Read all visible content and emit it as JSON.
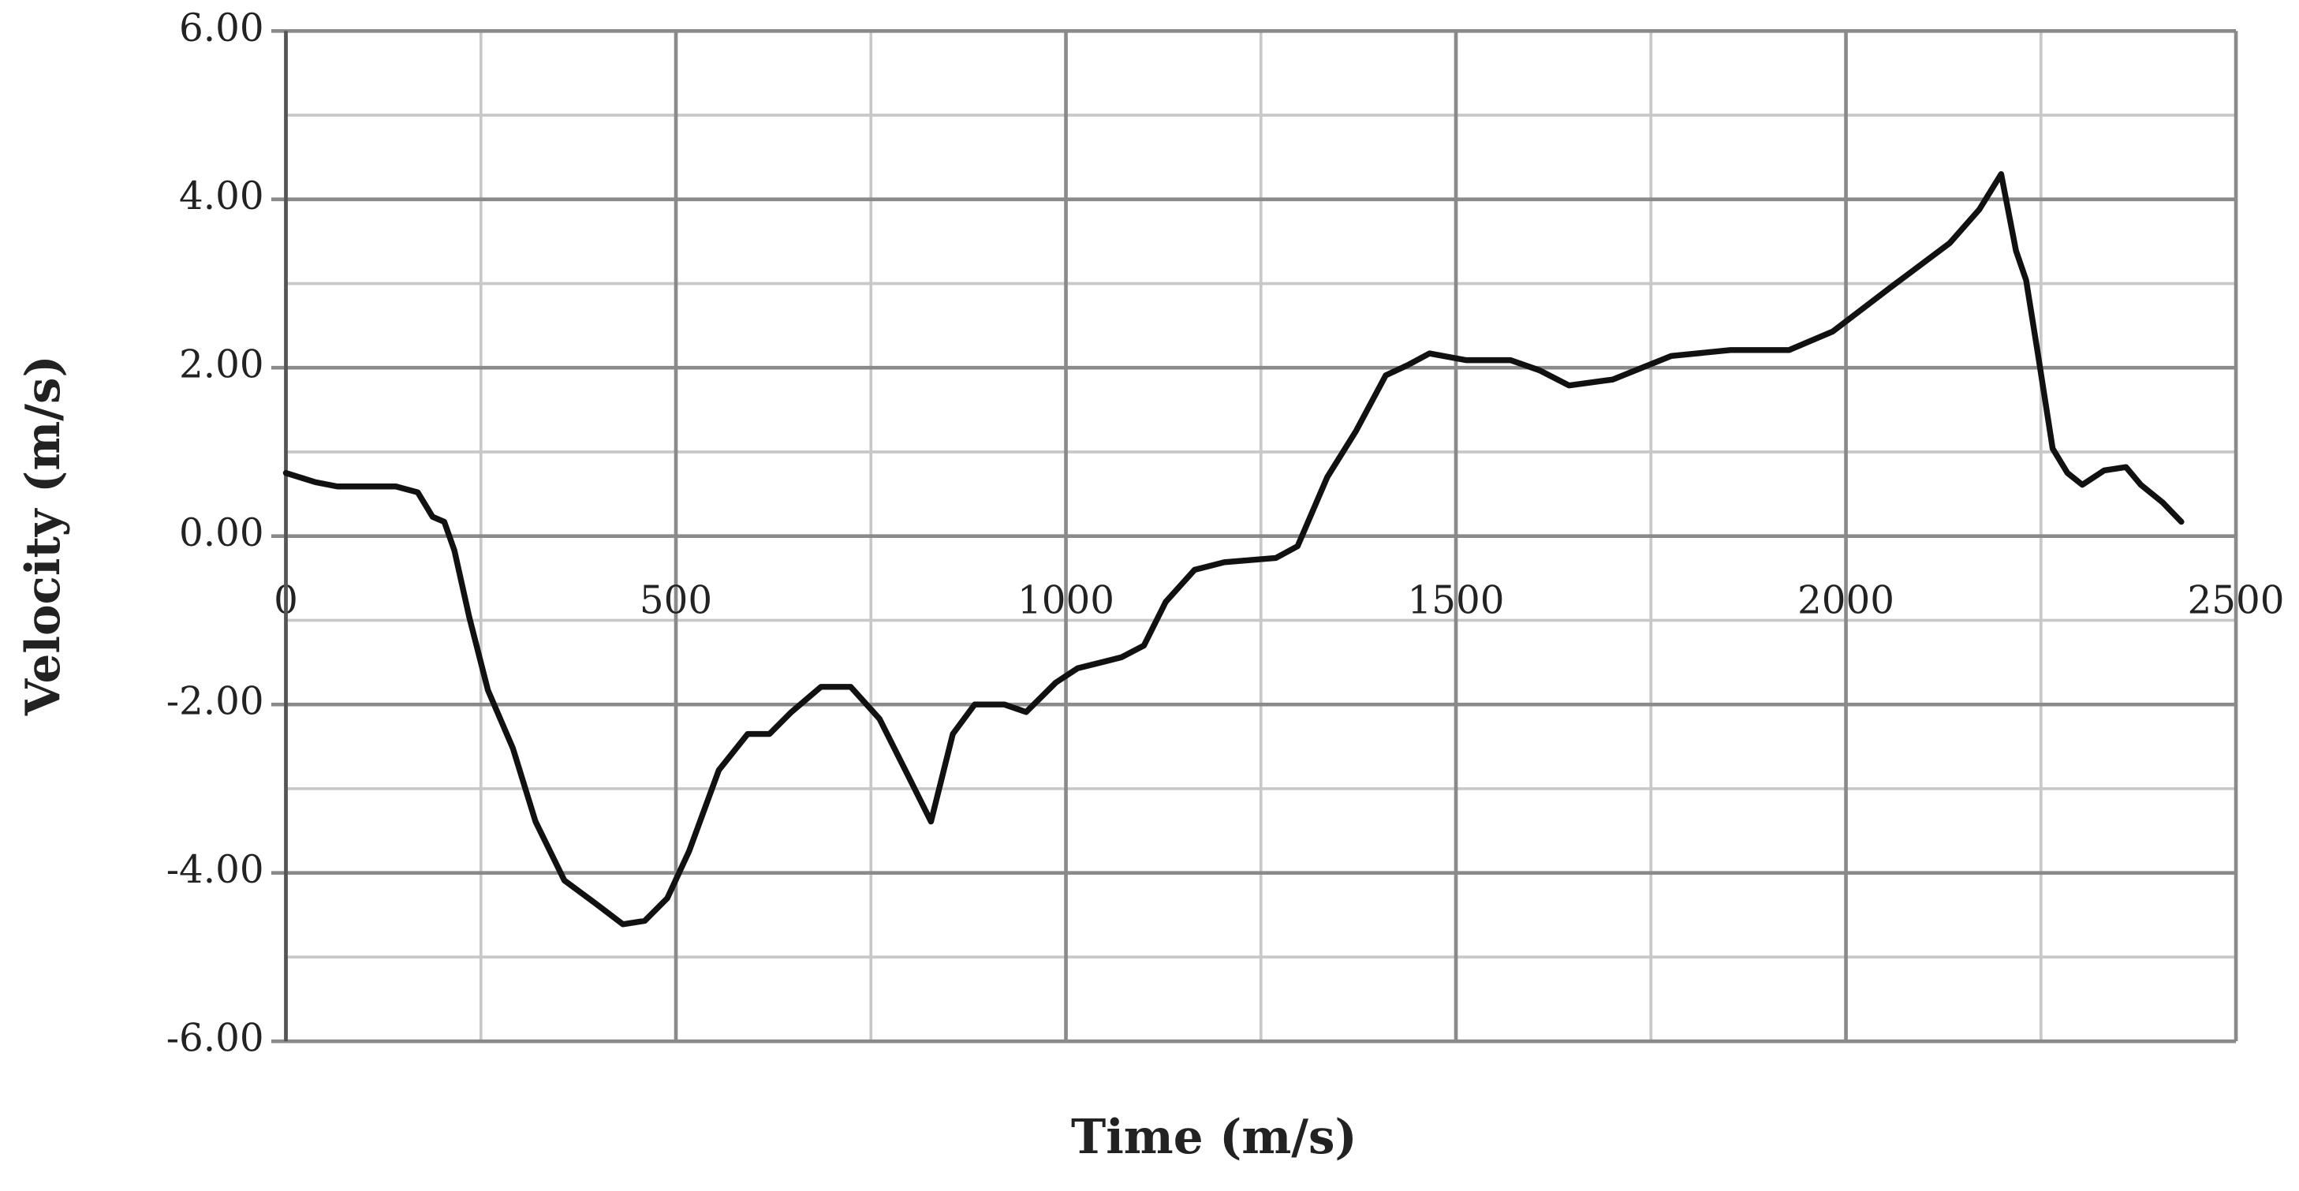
{
  "chart_data": {
    "type": "line",
    "x_label": "Time (m/s)",
    "y_label": "Velocity (m/s)",
    "x": [
      0,
      38,
      66,
      141,
      169,
      188,
      203,
      216,
      235,
      259,
      291,
      320,
      357,
      395,
      432,
      460,
      489,
      517,
      555,
      592,
      620,
      648,
      686,
      724,
      761,
      799,
      827,
      855,
      883,
      921,
      949,
      987,
      1015,
      1071,
      1100,
      1128,
      1165,
      1203,
      1269,
      1297,
      1335,
      1372,
      1410,
      1438,
      1466,
      1513,
      1570,
      1607,
      1645,
      1701,
      1776,
      1852,
      1927,
      1983,
      2058,
      2133,
      2171,
      2199,
      2218,
      2231,
      2246,
      2265,
      2284,
      2303,
      2331,
      2359,
      2378,
      2406,
      2430
    ],
    "series": [
      {
        "name": "Velocity",
        "color": "#111111",
        "values": [
          0.75,
          0.64,
          0.59,
          0.59,
          0.52,
          0.23,
          0.17,
          -0.17,
          -0.96,
          -1.83,
          -2.52,
          -3.39,
          -4.09,
          -4.35,
          -4.61,
          -4.57,
          -4.3,
          -3.74,
          -2.78,
          -2.35,
          -2.35,
          -2.09,
          -1.79,
          -1.79,
          -2.17,
          -2.87,
          -3.39,
          -2.35,
          -2.0,
          -2.0,
          -2.09,
          -1.74,
          -1.57,
          -1.44,
          -1.3,
          -0.78,
          -0.4,
          -0.31,
          -0.26,
          -0.12,
          0.7,
          1.25,
          1.91,
          2.03,
          2.17,
          2.09,
          2.09,
          1.97,
          1.79,
          1.86,
          2.14,
          2.21,
          2.21,
          2.43,
          2.96,
          3.48,
          3.88,
          4.3,
          3.39,
          3.04,
          2.17,
          1.04,
          0.75,
          0.61,
          0.78,
          0.82,
          0.61,
          0.4,
          0.17
        ]
      }
    ],
    "xlim": [
      0,
      2500
    ],
    "xticks": [
      0,
      500,
      1000,
      1500,
      2000,
      2500
    ],
    "x_minor_grid": [
      250,
      750,
      1250,
      1750,
      2250
    ],
    "ylim": [
      -6,
      6
    ],
    "yticks": [
      {
        "value": -6,
        "label": "-6.00"
      },
      {
        "value": -4,
        "label": "-4.00"
      },
      {
        "value": -2,
        "label": "-2.00"
      },
      {
        "value": 0,
        "label": "0.00"
      },
      {
        "value": 2,
        "label": "2.00"
      },
      {
        "value": 4,
        "label": "4.00"
      },
      {
        "value": 6,
        "label": "6.00"
      }
    ],
    "y_minor_grid": [
      -5,
      -3,
      -1,
      1,
      3,
      5
    ],
    "grid": true,
    "legend": false
  }
}
